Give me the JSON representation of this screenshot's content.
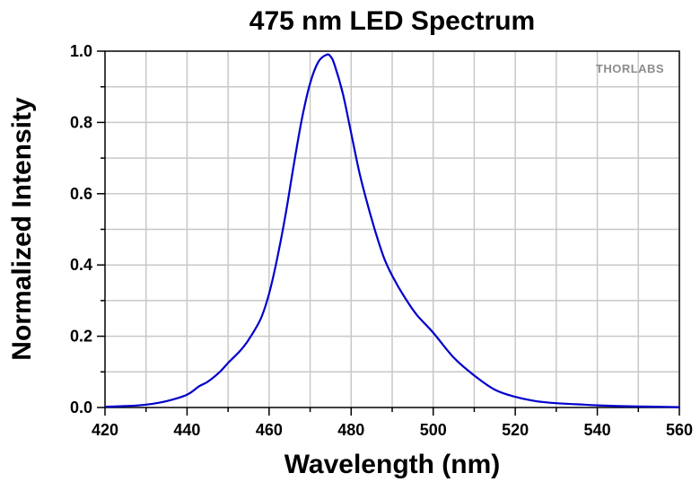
{
  "chart_data": {
    "type": "line",
    "title": "475 nm LED Spectrum",
    "xlabel": "Wavelength (nm)",
    "ylabel": "Normalized Intensity",
    "xlim": [
      420,
      560
    ],
    "ylim": [
      0.0,
      1.0
    ],
    "xticks": [
      "420",
      "440",
      "460",
      "480",
      "500",
      "520",
      "540",
      "560"
    ],
    "yticks": [
      "0.0",
      "0.2",
      "0.4",
      "0.6",
      "0.8",
      "1.0"
    ],
    "grid": true,
    "series": [
      {
        "color": "#0000cc",
        "x": [
          420,
          425,
          430,
          435,
          440,
          443,
          445,
          448,
          450,
          453,
          455,
          458,
          460,
          462,
          464,
          466,
          468,
          470,
          472,
          474,
          475,
          476,
          478,
          480,
          482,
          484,
          486,
          488,
          490,
          493,
          496,
          500,
          505,
          510,
          515,
          520,
          525,
          530,
          535,
          540,
          545,
          550,
          555,
          560
        ],
        "y": [
          0.002,
          0.004,
          0.008,
          0.018,
          0.036,
          0.06,
          0.072,
          0.1,
          0.125,
          0.16,
          0.19,
          0.25,
          0.32,
          0.42,
          0.54,
          0.68,
          0.81,
          0.91,
          0.97,
          0.99,
          0.985,
          0.96,
          0.88,
          0.77,
          0.66,
          0.57,
          0.49,
          0.42,
          0.37,
          0.31,
          0.26,
          0.21,
          0.14,
          0.09,
          0.05,
          0.03,
          0.018,
          0.012,
          0.009,
          0.006,
          0.004,
          0.003,
          0.002,
          0.001
        ]
      }
    ]
  },
  "logo": {
    "text": "THORLABS"
  }
}
